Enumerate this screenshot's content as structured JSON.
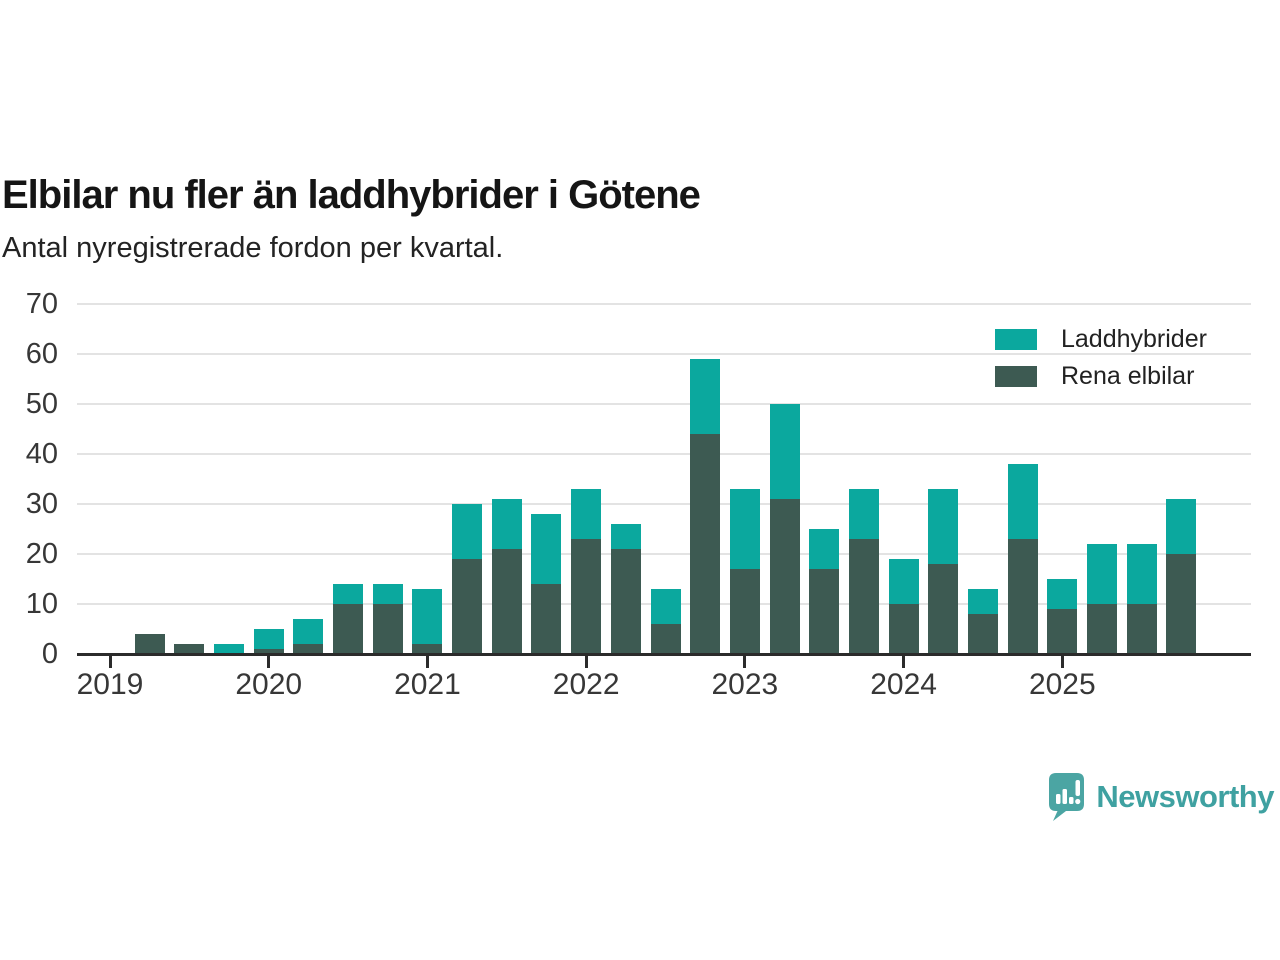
{
  "header": {
    "title": "Elbilar nu fler än laddhybrider i Götene",
    "subtitle": "Antal nyregistrerade fordon per kvartal."
  },
  "legend": {
    "items": [
      {
        "label": "Laddhybrider",
        "color": "#0ba89e"
      },
      {
        "label": "Rena elbilar",
        "color": "#3d5a52"
      }
    ]
  },
  "footer": {
    "brand": "Newsworthy",
    "logo_color": "#4ba5a3",
    "text_color": "#3fa1a1"
  },
  "colors": {
    "axis": "#2b2b2b",
    "gridline": "#e3e3e3",
    "tick_text": "#373737"
  },
  "chart_data": {
    "type": "bar",
    "stacked": true,
    "title": "Elbilar nu fler än laddhybrider i Götene",
    "subtitle": "Antal nyregistrerade fordon per kvartal.",
    "categories": [
      "2019 Q2",
      "2019 Q3",
      "2019 Q4",
      "2020 Q1",
      "2020 Q2",
      "2020 Q3",
      "2020 Q4",
      "2021 Q1",
      "2021 Q2",
      "2021 Q3",
      "2021 Q4",
      "2022 Q1",
      "2022 Q2",
      "2022 Q3",
      "2022 Q4",
      "2023 Q1",
      "2023 Q2",
      "2023 Q3",
      "2023 Q4",
      "2024 Q1",
      "2024 Q2",
      "2024 Q3",
      "2024 Q4",
      "2025 Q1",
      "2025 Q2",
      "2025 Q3",
      "2025 Q4"
    ],
    "series": [
      {
        "name": "Rena elbilar",
        "color": "#3d5a52",
        "values": [
          4,
          2,
          0,
          1,
          2,
          10,
          10,
          2,
          19,
          21,
          14,
          23,
          21,
          6,
          44,
          17,
          31,
          17,
          23,
          10,
          18,
          8,
          23,
          9,
          10,
          10,
          20
        ]
      },
      {
        "name": "Laddhybrider",
        "color": "#0ba89e",
        "values": [
          0,
          0,
          2,
          4,
          5,
          4,
          4,
          11,
          11,
          10,
          14,
          10,
          5,
          7,
          15,
          16,
          19,
          8,
          10,
          9,
          15,
          5,
          15,
          6,
          12,
          12,
          11
        ]
      }
    ],
    "totals": [
      4,
      2,
      2,
      5,
      7,
      14,
      14,
      13,
      30,
      31,
      28,
      33,
      26,
      13,
      59,
      33,
      50,
      25,
      33,
      19,
      33,
      13,
      38,
      15,
      22,
      22,
      31
    ],
    "xlabel": "",
    "ylabel": "",
    "ylim": [
      0,
      70
    ],
    "yticks": [
      0,
      10,
      20,
      30,
      40,
      50,
      60,
      70
    ],
    "xticks": [
      "2019",
      "2020",
      "2021",
      "2022",
      "2023",
      "2024",
      "2025"
    ],
    "x_start_year": 2019,
    "grid": "horizontal",
    "legend_position": "top-right"
  }
}
